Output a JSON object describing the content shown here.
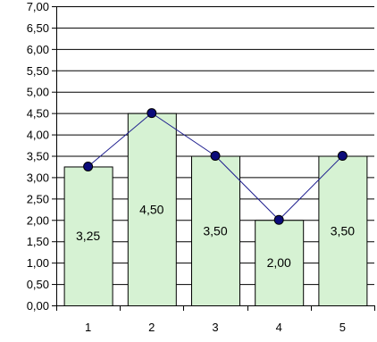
{
  "chart_data": {
    "type": "bar",
    "categories": [
      "1",
      "2",
      "3",
      "4",
      "5"
    ],
    "values": [
      3.25,
      4.5,
      3.5,
      2.0,
      3.5
    ],
    "data_labels": [
      "3,25",
      "4,50",
      "3,50",
      "2,00",
      "3,50"
    ],
    "overlay": {
      "type": "line",
      "values": [
        3.25,
        4.5,
        3.5,
        2.0,
        3.5
      ],
      "markers": "circle"
    },
    "ylim": [
      0,
      7
    ],
    "y_ticks": [
      "0,00",
      "0,50",
      "1,00",
      "1,50",
      "2,00",
      "2,50",
      "3,00",
      "3,50",
      "4,00",
      "4,50",
      "5,00",
      "5,50",
      "6,00",
      "6,50",
      "7,00"
    ],
    "y_tick_values": [
      0,
      0.5,
      1,
      1.5,
      2,
      2.5,
      3,
      3.5,
      4,
      4.5,
      5,
      5.5,
      6,
      6.5,
      7
    ],
    "title": "",
    "xlabel": "",
    "ylabel": "",
    "grid": "horizontal",
    "legend": "none",
    "colors": {
      "bar_fill": "#d6f2d3",
      "bar_stroke": "#000000",
      "line": "#1f1f8f",
      "marker_fill": "#0b0b7a",
      "marker_stroke": "#000000",
      "grid": "#000000",
      "axis": "#000000"
    }
  }
}
